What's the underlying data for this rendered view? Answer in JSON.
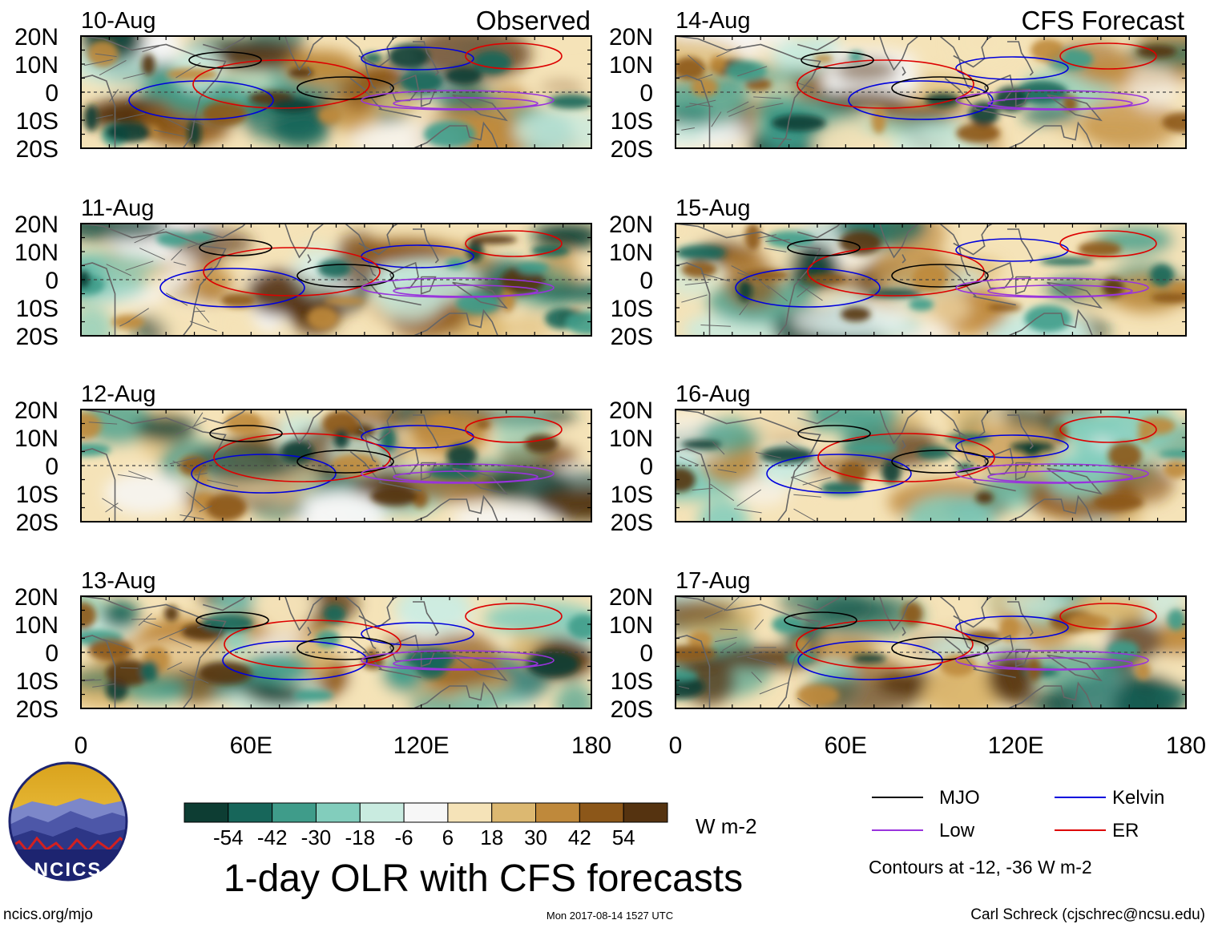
{
  "labels": {
    "observed": "Observed",
    "forecast": "CFS Forecast"
  },
  "panels": [
    {
      "date": "10-Aug",
      "group": "observed"
    },
    {
      "date": "11-Aug",
      "group": "observed"
    },
    {
      "date": "12-Aug",
      "group": "observed"
    },
    {
      "date": "13-Aug",
      "group": "observed"
    },
    {
      "date": "14-Aug",
      "group": "forecast"
    },
    {
      "date": "15-Aug",
      "group": "forecast"
    },
    {
      "date": "16-Aug",
      "group": "forecast"
    },
    {
      "date": "17-Aug",
      "group": "forecast"
    }
  ],
  "lat_ticks": [
    "20N",
    "10N",
    "0",
    "10S",
    "20S"
  ],
  "lon_ticks": [
    "0",
    "60E",
    "120E",
    "180"
  ],
  "colorbar": {
    "unit": "W m-2",
    "labels": [
      "-54",
      "-42",
      "-30",
      "-18",
      "-6",
      "6",
      "18",
      "30",
      "42",
      "54"
    ],
    "colors": [
      "#0d3d33",
      "#17665a",
      "#3f9c8a",
      "#82cdbc",
      "#c9ebe0",
      "#f7f7f7",
      "#f5e3b8",
      "#dcb871",
      "#bf893b",
      "#8c5719",
      "#553310"
    ]
  },
  "title": "1-day OLR with CFS forecasts",
  "legend": {
    "items": [
      {
        "label": "MJO",
        "color": "#000000"
      },
      {
        "label": "Kelvin",
        "color": "#0000dd"
      },
      {
        "label": "Low",
        "color": "#9933dd"
      },
      {
        "label": "ER",
        "color": "#dd0000"
      }
    ],
    "note": "Contours at -12, -36 W m-2"
  },
  "logo_text": "NCICS",
  "footer": {
    "url": "ncics.org/mjo",
    "timestamp": "Mon 2017-08-14 1527 UTC",
    "author": "Carl Schreck (cjschrec@ncsu.edu)"
  },
  "colors": {
    "land": "#666666",
    "frame": "#000000"
  }
}
